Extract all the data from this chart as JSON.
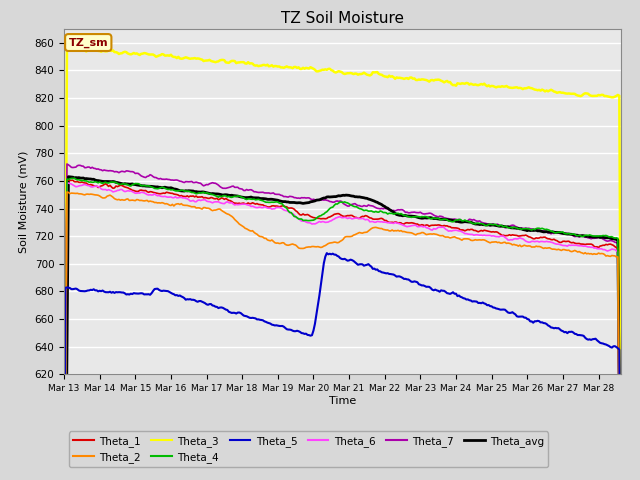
{
  "title": "TZ Soil Moisture",
  "ylabel": "Soil Moisture (mV)",
  "xlabel": "Time",
  "annotation": "TZ_sm",
  "fig_bg": "#d8d8d8",
  "plot_bg": "#e8e8e8",
  "ylim": [
    620,
    870
  ],
  "yticks": [
    620,
    640,
    660,
    680,
    700,
    720,
    740,
    760,
    780,
    800,
    820,
    840,
    860
  ],
  "xtick_labels": [
    "Mar 13",
    "Mar 14",
    "Mar 15",
    "Mar 16",
    "Mar 17",
    "Mar 18",
    "Mar 19",
    "Mar 20",
    "Mar 21",
    "Mar 22",
    "Mar 23",
    "Mar 24",
    "Mar 25",
    "Mar 26",
    "Mar 27",
    "Mar 28"
  ],
  "series": {
    "Theta_1": {
      "color": "#dd0000",
      "lw": 1.2
    },
    "Theta_2": {
      "color": "#ff8800",
      "lw": 1.2
    },
    "Theta_3": {
      "color": "#ffff00",
      "lw": 1.8
    },
    "Theta_4": {
      "color": "#00bb00",
      "lw": 1.2
    },
    "Theta_5": {
      "color": "#0000cc",
      "lw": 1.5
    },
    "Theta_6": {
      "color": "#ff44ff",
      "lw": 1.2
    },
    "Theta_7": {
      "color": "#aa00aa",
      "lw": 1.2
    },
    "Theta_avg": {
      "color": "#000000",
      "lw": 2.0
    }
  }
}
